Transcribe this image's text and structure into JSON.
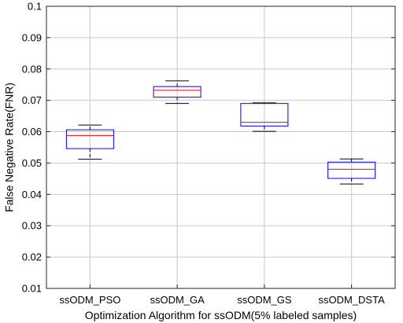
{
  "chart_data": {
    "type": "box",
    "xlabel": "Optimization Algorithm for ssODM(5% labeled samples)",
    "ylabel": "False Negative Rate(FNR)",
    "ylim": [
      0.01,
      0.1
    ],
    "yticks": [
      "0.01",
      "0.02",
      "0.03",
      "0.04",
      "0.05",
      "0.06",
      "0.07",
      "0.08",
      "0.09",
      "0.1"
    ],
    "grid": true,
    "categories": [
      "ssODM_PSO",
      "ssODM_GA",
      "ssODM_GS",
      "ssODM_DSTA"
    ],
    "boxes": [
      {
        "min": 0.0512,
        "q1": 0.0546,
        "median": 0.0588,
        "q3": 0.0606,
        "max": 0.0621
      },
      {
        "min": 0.069,
        "q1": 0.071,
        "median": 0.0732,
        "q3": 0.0744,
        "max": 0.0762
      },
      {
        "min": 0.0601,
        "q1": 0.0618,
        "median": 0.063,
        "q3": 0.069,
        "max": 0.0692
      },
      {
        "min": 0.0433,
        "q1": 0.0451,
        "median": 0.048,
        "q3": 0.0503,
        "max": 0.0513
      }
    ],
    "colors": {
      "box": "#0000ff",
      "median": "#ff0000",
      "whisker": "#000000",
      "grid": "#c8c8c8"
    }
  }
}
